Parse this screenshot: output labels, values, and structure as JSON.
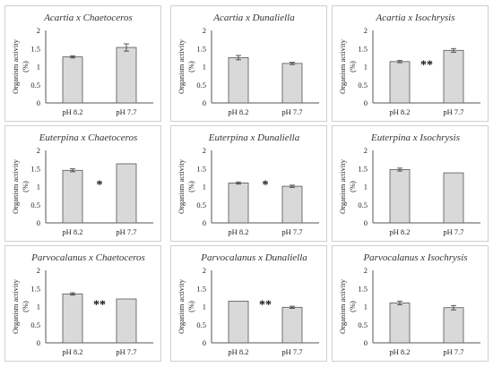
{
  "colors": {
    "bar_fill": "#d9d9d9",
    "bar_stroke": "#555555",
    "axis": "#555555",
    "panel_border": "#cfcfcf"
  },
  "chart_data": [
    {
      "type": "bar",
      "title": "Acartia x Chaetoceros",
      "ylabel": "Organism activity\n(%)",
      "categories": [
        "pH 8.2",
        "pH 7.7"
      ],
      "values": [
        1.27,
        1.53
      ],
      "errors": [
        0.03,
        0.1
      ],
      "ylim": [
        0,
        2
      ],
      "yticks": [
        "0",
        "0.5",
        "1",
        "1.5",
        "2"
      ],
      "significance": "",
      "grid": false,
      "legend": "none"
    },
    {
      "type": "bar",
      "title": "Acartia x Dunaliella",
      "ylabel": "Organism activity\n(%)",
      "categories": [
        "pH 8.2",
        "pH 7.7"
      ],
      "values": [
        1.25,
        1.09
      ],
      "errors": [
        0.06,
        0.03
      ],
      "ylim": [
        0,
        2
      ],
      "yticks": [
        "0",
        "0.5",
        "1",
        "1.5",
        "2"
      ],
      "significance": "",
      "grid": false,
      "legend": "none"
    },
    {
      "type": "bar",
      "title": "Acartia x Isochrysis",
      "ylabel": "Organism activity\n(%)",
      "categories": [
        "pH 8.2",
        "pH 7.7"
      ],
      "values": [
        1.14,
        1.45
      ],
      "errors": [
        0.03,
        0.05
      ],
      "ylim": [
        0,
        2
      ],
      "yticks": [
        "0",
        "0.5",
        "1",
        "1.5",
        "2"
      ],
      "significance": "**",
      "grid": false,
      "legend": "none"
    },
    {
      "type": "bar",
      "title": "Euterpina x Chaetoceros",
      "ylabel": "Organism activity\n(%)",
      "categories": [
        "pH 8.2",
        "pH 7.7"
      ],
      "values": [
        1.45,
        1.63
      ],
      "errors": [
        0.04,
        0.0
      ],
      "ylim": [
        0,
        2
      ],
      "yticks": [
        "0",
        "0.5",
        "1",
        "1.5",
        "2"
      ],
      "significance": "*",
      "grid": false,
      "legend": "none"
    },
    {
      "type": "bar",
      "title": "Euterpina x Dunaliella",
      "ylabel": "Organism activity\n(%)",
      "categories": [
        "pH 8.2",
        "pH 7.7"
      ],
      "values": [
        1.1,
        1.01
      ],
      "errors": [
        0.03,
        0.03
      ],
      "ylim": [
        0,
        2
      ],
      "yticks": [
        "0",
        "0.5",
        "1",
        "1.5",
        "2"
      ],
      "significance": "*",
      "grid": false,
      "legend": "none"
    },
    {
      "type": "bar",
      "title": "Euterpina x Isochrysis",
      "ylabel": "Organism activity\n(%)",
      "categories": [
        "pH 8.2",
        "pH 7.7"
      ],
      "values": [
        1.47,
        1.38
      ],
      "errors": [
        0.04,
        0.0
      ],
      "ylim": [
        0,
        2
      ],
      "yticks": [
        "0",
        "0.5",
        "1",
        "1.5",
        "2"
      ],
      "significance": "",
      "grid": false,
      "legend": "none"
    },
    {
      "type": "bar",
      "title": "Parvocalanus x Chaetoceros",
      "ylabel": "Organism activity\n(%)",
      "categories": [
        "pH 8.2",
        "pH 7.7"
      ],
      "values": [
        1.35,
        1.21
      ],
      "errors": [
        0.03,
        0.0
      ],
      "ylim": [
        0,
        2
      ],
      "yticks": [
        "0",
        "0.5",
        "1",
        "1.5",
        "2"
      ],
      "significance": "**",
      "grid": false,
      "legend": "none"
    },
    {
      "type": "bar",
      "title": "Parvocalanus x Dunaliella",
      "ylabel": "Organism activity\n(%)",
      "categories": [
        "pH 8.2",
        "pH 7.7"
      ],
      "values": [
        1.15,
        0.98
      ],
      "errors": [
        0.0,
        0.03
      ],
      "ylim": [
        0,
        2
      ],
      "yticks": [
        "0",
        "0.5",
        "1",
        "1.5",
        "2"
      ],
      "significance": "**",
      "grid": false,
      "legend": "none"
    },
    {
      "type": "bar",
      "title": "Parvocalanus x Isochrysis",
      "ylabel": "Organism activity\n(%)",
      "categories": [
        "pH 8.2",
        "pH 7.7"
      ],
      "values": [
        1.1,
        0.97
      ],
      "errors": [
        0.05,
        0.06
      ],
      "ylim": [
        0,
        2
      ],
      "yticks": [
        "0",
        "0.5",
        "1",
        "1.5",
        "2"
      ],
      "significance": "",
      "grid": false,
      "legend": "none"
    }
  ]
}
